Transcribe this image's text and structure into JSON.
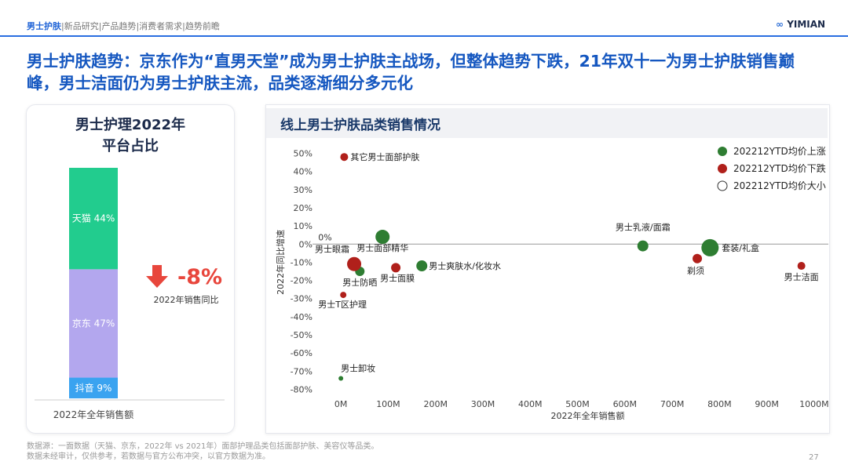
{
  "header": {
    "nav": [
      "男士护肤",
      "新品研究",
      "产品趋势",
      "消费者需求",
      "趋势前瞻"
    ],
    "brand": "YIMIAN"
  },
  "title": "男士护肤趋势：京东作为“直男天堂”成为男士护肤主战场，但整体趋势下跌，21年双十一为男士护肤销售巅峰，男士洁面仍为男士护肤主流，品类逐渐细分多元化",
  "kpi": {
    "value_label": "-8%",
    "label": "2022年销售同比"
  },
  "chart_data": [
    {
      "type": "stacked-bar",
      "title": "男士护理2022年平台占比",
      "categories": [
        "2022年全年销售额"
      ],
      "ylim": [
        0,
        100
      ],
      "series": [
        {
          "name": "抖音",
          "color": "#3aa3f0",
          "values": [
            9
          ],
          "value_labels": [
            "抖音 9%"
          ]
        },
        {
          "name": "京东",
          "color": "#b3a7ee",
          "values": [
            47
          ],
          "value_labels": [
            "京东 47%"
          ]
        },
        {
          "name": "天猫",
          "color": "#22cc8e",
          "values": [
            44
          ],
          "value_labels": [
            "天猫 44%"
          ]
        }
      ]
    },
    {
      "type": "bubble",
      "title": "线上男士护肤品类销售情况",
      "xlabel": "2022年全年销售额",
      "ylabel": "2022年同比增速",
      "xlim": [
        -60,
        1030
      ],
      "ylim": [
        -85,
        55
      ],
      "xticks": [
        {
          "value": 0,
          "label": "0M"
        },
        {
          "value": 100,
          "label": "100M"
        },
        {
          "value": 200,
          "label": "200M"
        },
        {
          "value": 300,
          "label": "300M"
        },
        {
          "value": 400,
          "label": "400M"
        },
        {
          "value": 500,
          "label": "500M"
        },
        {
          "value": 600,
          "label": "600M"
        },
        {
          "value": 700,
          "label": "700M"
        },
        {
          "value": 800,
          "label": "800M"
        },
        {
          "value": 900,
          "label": "900M"
        },
        {
          "value": 1000,
          "label": "1000M"
        }
      ],
      "yticks": [
        {
          "value": 50,
          "label": "50%"
        },
        {
          "value": 40,
          "label": "40%"
        },
        {
          "value": 30,
          "label": "30%"
        },
        {
          "value": 20,
          "label": "20%"
        },
        {
          "value": 10,
          "label": "10%"
        },
        {
          "value": 0,
          "label": "0%"
        },
        {
          "value": -10,
          "label": "-10%"
        },
        {
          "value": -20,
          "label": "-20%"
        },
        {
          "value": -30,
          "label": "-30%"
        },
        {
          "value": -40,
          "label": "-40%"
        },
        {
          "value": -50,
          "label": "-50%"
        },
        {
          "value": -60,
          "label": "-60%"
        },
        {
          "value": -70,
          "label": "-70%"
        },
        {
          "value": -80,
          "label": "-80%"
        }
      ],
      "zero_line": true,
      "legend": "top-right",
      "size_legend": "202212YTD均价大小",
      "annotations": [
        "0%"
      ],
      "series": [
        {
          "name": "202212YTD均价上涨",
          "color": "#2e7d32",
          "labels": [
            "男士面部精华",
            "男士防晒",
            "男士爽肤水/化妆水",
            "男士卸妆",
            "男士乳液/面霜",
            "套装/礼盒"
          ],
          "x": [
            88,
            40,
            171,
            0,
            638,
            780
          ],
          "values": [
            4,
            -15,
            -12,
            -74,
            -1,
            -2
          ],
          "sizes": [
            9,
            6,
            7,
            3,
            7,
            11
          ]
        },
        {
          "name": "202212YTD均价下跌",
          "color": "#b0201b",
          "labels": [
            "其它男士面部护肤",
            "男士眼霜",
            "男士面膜",
            "男士T区护理",
            "剃须",
            "男士洁面"
          ],
          "x": [
            7,
            28,
            116,
            5,
            753,
            973
          ],
          "values": [
            48,
            -11,
            -13,
            -28,
            -8,
            -12
          ],
          "sizes": [
            5,
            9,
            6,
            4,
            6,
            5
          ]
        }
      ]
    }
  ],
  "footnote": [
    "数据源：一面数据（天猫、京东，2022年 vs 2021年）面部护理品类包括面部护肤、美容仪等品类。",
    "数据未经审计，仅供参考，若数据与官方公布冲突，以官方数据为准。"
  ],
  "page": "27"
}
